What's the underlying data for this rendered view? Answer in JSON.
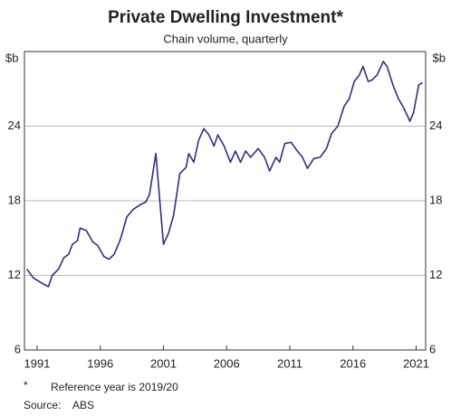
{
  "chart_data": {
    "type": "line",
    "title": "Private Dwelling Investment*",
    "subtitle": "Chain volume, quarterly",
    "y_label": "$b",
    "y2_label": "$b",
    "x": [
      1990.2,
      1990.7,
      1991.5,
      1991.9,
      1992.2,
      1992.7,
      1993.1,
      1993.5,
      1993.8,
      1994.2,
      1994.4,
      1994.9,
      1995.4,
      1995.8,
      1996.3,
      1996.7,
      1997.1,
      1997.6,
      1998.1,
      1998.6,
      1999.2,
      1999.6,
      1999.9,
      2000.4,
      2001.0,
      2001.4,
      2001.8,
      2002.3,
      2002.8,
      2003.0,
      2003.4,
      2003.8,
      2004.2,
      2004.6,
      2005.0,
      2005.3,
      2005.8,
      2006.3,
      2006.7,
      2007.1,
      2007.5,
      2007.9,
      2008.5,
      2009.0,
      2009.4,
      2009.9,
      2010.2,
      2010.6,
      2011.1,
      2011.6,
      2012.0,
      2012.4,
      2012.9,
      2013.4,
      2013.9,
      2014.3,
      2014.8,
      2015.3,
      2015.7,
      2016.1,
      2016.5,
      2016.8,
      2017.2,
      2017.5,
      2017.9,
      2018.4,
      2018.7,
      2019.2,
      2019.6,
      2020.0,
      2020.5,
      2020.8,
      2021.2,
      2021.5
    ],
    "series": [
      {
        "name": "Private dwelling investment",
        "color": "#2e2e8a",
        "values": [
          12.5,
          11.8,
          11.3,
          11.1,
          12.0,
          12.5,
          13.4,
          13.7,
          14.5,
          14.8,
          15.8,
          15.6,
          14.7,
          14.4,
          13.5,
          13.3,
          13.7,
          14.9,
          16.7,
          17.3,
          17.7,
          17.9,
          18.5,
          21.8,
          14.5,
          15.4,
          16.8,
          20.2,
          20.7,
          21.8,
          21.1,
          22.9,
          23.8,
          23.3,
          22.4,
          23.3,
          22.4,
          21.1,
          22.0,
          21.1,
          22.0,
          21.5,
          22.2,
          21.5,
          20.4,
          21.5,
          21.1,
          22.6,
          22.7,
          22.0,
          21.5,
          20.6,
          21.4,
          21.5,
          22.2,
          23.4,
          24.0,
          25.6,
          26.2,
          27.6,
          28.1,
          28.8,
          27.6,
          27.7,
          28.1,
          29.2,
          28.8,
          27.2,
          26.2,
          25.5,
          24.4,
          25.1,
          27.3,
          27.5
        ]
      }
    ],
    "xlim": [
      1990,
      2021.75
    ],
    "xticks": [
      1991,
      1996,
      2001,
      2006,
      2011,
      2016,
      2021
    ],
    "ylim": [
      6,
      30
    ],
    "yticks": [
      6,
      12,
      18,
      24
    ],
    "grid": true,
    "notes": [
      {
        "marker": "*",
        "text": "Reference year is 2019/20"
      }
    ],
    "source_label": "Source:",
    "source": "ABS"
  }
}
